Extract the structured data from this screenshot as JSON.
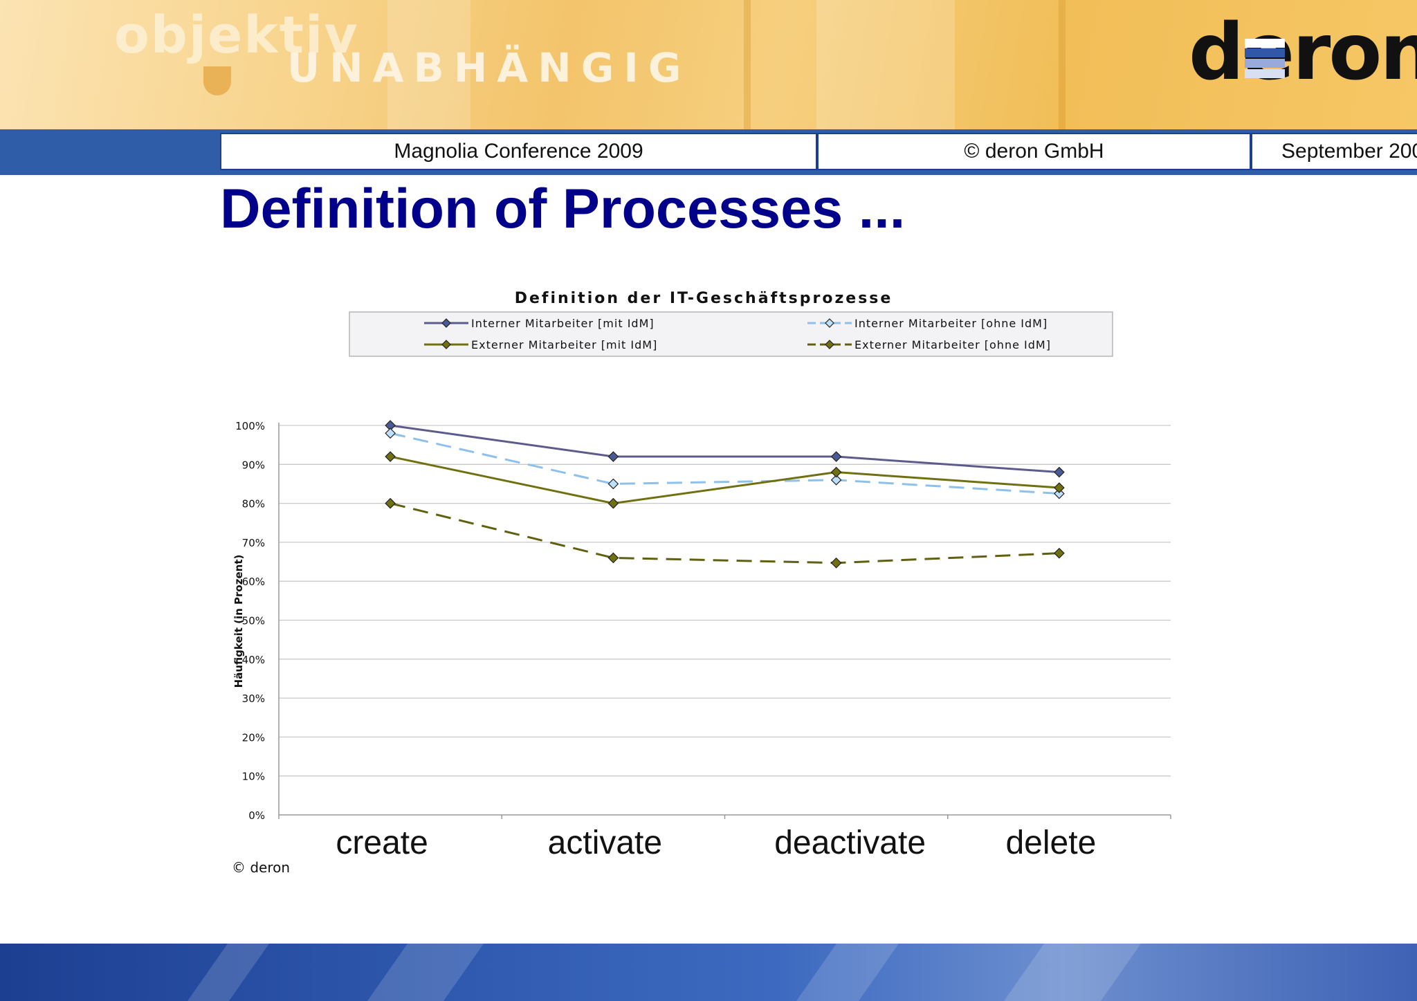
{
  "brand": {
    "line1": "objektiv",
    "line2": "UNABHÄNGIG",
    "logo": "deron"
  },
  "header": {
    "conference": "Magnolia Conference 2009",
    "copyright": "© deron GmbH",
    "date": "September 200"
  },
  "slide": {
    "title": "Definition of Processes ...",
    "footer_note": "© deron"
  },
  "colors": {
    "title": "#00008b",
    "header_bar": "#2f5da8"
  },
  "chart_data": {
    "type": "line",
    "title": "Definition der IT-Geschäftsprozesse",
    "xlabel": "",
    "ylabel": "Häufigkeit (in Prozent)",
    "ylim": [
      0,
      100
    ],
    "yticks": [
      "0%",
      "10%",
      "20%",
      "30%",
      "40%",
      "50%",
      "60%",
      "70%",
      "80%",
      "90%",
      "100%"
    ],
    "categories": [
      "create",
      "activate",
      "deactivate",
      "delete"
    ],
    "legend_position": "top",
    "grid": true,
    "series": [
      {
        "name": "Interner Mitarbeiter [mit IdM]",
        "values": [
          100,
          92,
          92,
          88
        ],
        "color": "#5c5c8c",
        "dash": "solid",
        "marker": "#4a5a96"
      },
      {
        "name": "Interner Mitarbeiter [ohne IdM]",
        "values": [
          98,
          85,
          86,
          82.5
        ],
        "color": "#8ec0ec",
        "dash": "dashed",
        "marker": "#bfe0fa"
      },
      {
        "name": "Externer Mitarbeiter [mit IdM]",
        "values": [
          92,
          80,
          88,
          84
        ],
        "color": "#707010",
        "dash": "solid",
        "marker": "#707010"
      },
      {
        "name": "Externer Mitarbeiter [ohne IdM]",
        "values": [
          80,
          66,
          64.7,
          67.2
        ],
        "color": "#606010",
        "dash": "dashed",
        "marker": "#707010"
      }
    ]
  }
}
